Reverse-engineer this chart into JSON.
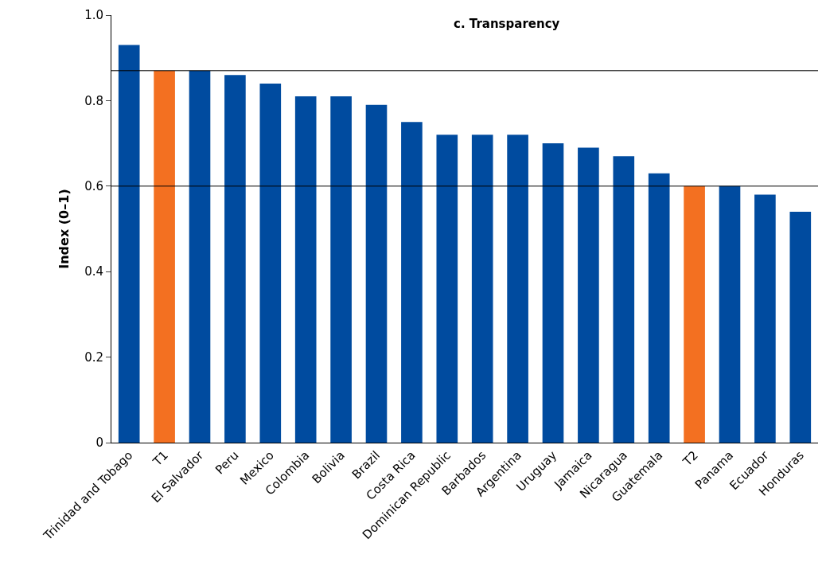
{
  "chart_data": {
    "type": "bar",
    "title": "c. Transparency",
    "ylabel": "Index (0–1)",
    "categories": [
      "Trinidad and Tobago",
      "T1",
      "El Salvador",
      "Peru",
      "Mexico",
      "Colombia",
      "Bolivia",
      "Brazil",
      "Costa Rica",
      "Dominican Republic",
      "Barbados",
      "Argentina",
      "Uruguay",
      "Jamaica",
      "Nicaragua",
      "Guatemala",
      "T2",
      "Panama",
      "Ecuador",
      "Honduras"
    ],
    "values": [
      0.93,
      0.87,
      0.87,
      0.86,
      0.84,
      0.81,
      0.81,
      0.79,
      0.75,
      0.72,
      0.72,
      0.72,
      0.7,
      0.69,
      0.67,
      0.63,
      0.6,
      0.6,
      0.58,
      0.54
    ],
    "colors": [
      "#004b9f",
      "#f37021",
      "#004b9f",
      "#004b9f",
      "#004b9f",
      "#004b9f",
      "#004b9f",
      "#004b9f",
      "#004b9f",
      "#004b9f",
      "#004b9f",
      "#004b9f",
      "#004b9f",
      "#004b9f",
      "#004b9f",
      "#004b9f",
      "#f37021",
      "#004b9f",
      "#004b9f",
      "#004b9f"
    ],
    "ylim": [
      0,
      1.0
    ],
    "yticks": [
      0,
      {
        "value": 0.2,
        "label": "0.2"
      },
      {
        "value": 0.4,
        "label": "0.4"
      },
      {
        "value": 0.6,
        "label": "0.6"
      },
      {
        "value": 0.8,
        "label": "0.8"
      },
      {
        "value": 1.0,
        "label": "1.0"
      }
    ],
    "ref_lines": [
      {
        "axis": "y",
        "value": 0.87,
        "color": "#000000"
      },
      {
        "axis": "y",
        "value": 0.6,
        "color": "#000000"
      }
    ]
  }
}
